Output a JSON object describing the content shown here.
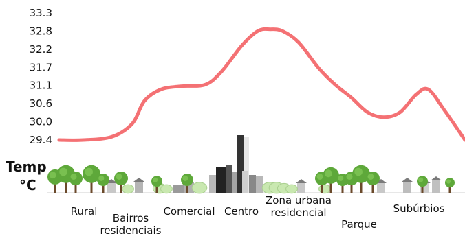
{
  "chart_data": {
    "type": "line",
    "title": "",
    "ylabel_line1": "Temp",
    "ylabel_line2": "°C",
    "yticks": [
      "33.3",
      "32.8",
      "32.2",
      "31.7",
      "31.1",
      "30.6",
      "30.0",
      "29.4"
    ],
    "ylim": [
      29.4,
      33.3
    ],
    "grid": false,
    "line_color": "#f47174",
    "zones": [
      "Rural",
      "Bairros residenciais",
      "Comercial",
      "Centro",
      "Zona urbana residencial",
      "Parque",
      "Subúrbios"
    ],
    "zone_lines": [
      [
        "Rural"
      ],
      [
        "Bairros",
        "residenciais"
      ],
      [
        "Comercial"
      ],
      [
        "Centro"
      ],
      [
        "Zona urbana",
        "residencial"
      ],
      [
        "Parque"
      ],
      [
        "Subúrbios"
      ]
    ],
    "profile_x": [
      0,
      0.06,
      0.13,
      0.18,
      0.21,
      0.25,
      0.3,
      0.36,
      0.4,
      0.45,
      0.49,
      0.52,
      0.55,
      0.59,
      0.64,
      0.68,
      0.72,
      0.76,
      0.8,
      0.84,
      0.88,
      0.91,
      0.95,
      1.0
    ],
    "profile_y": [
      29.4,
      29.4,
      29.5,
      29.9,
      30.6,
      30.95,
      31.05,
      31.1,
      31.5,
      32.3,
      32.75,
      32.8,
      32.75,
      32.4,
      31.6,
      31.1,
      30.7,
      30.25,
      30.1,
      30.25,
      30.8,
      30.95,
      30.3,
      29.4
    ]
  },
  "icons": [
    "tree-icon",
    "house-icon",
    "bush-icon",
    "skyscraper-icon"
  ]
}
